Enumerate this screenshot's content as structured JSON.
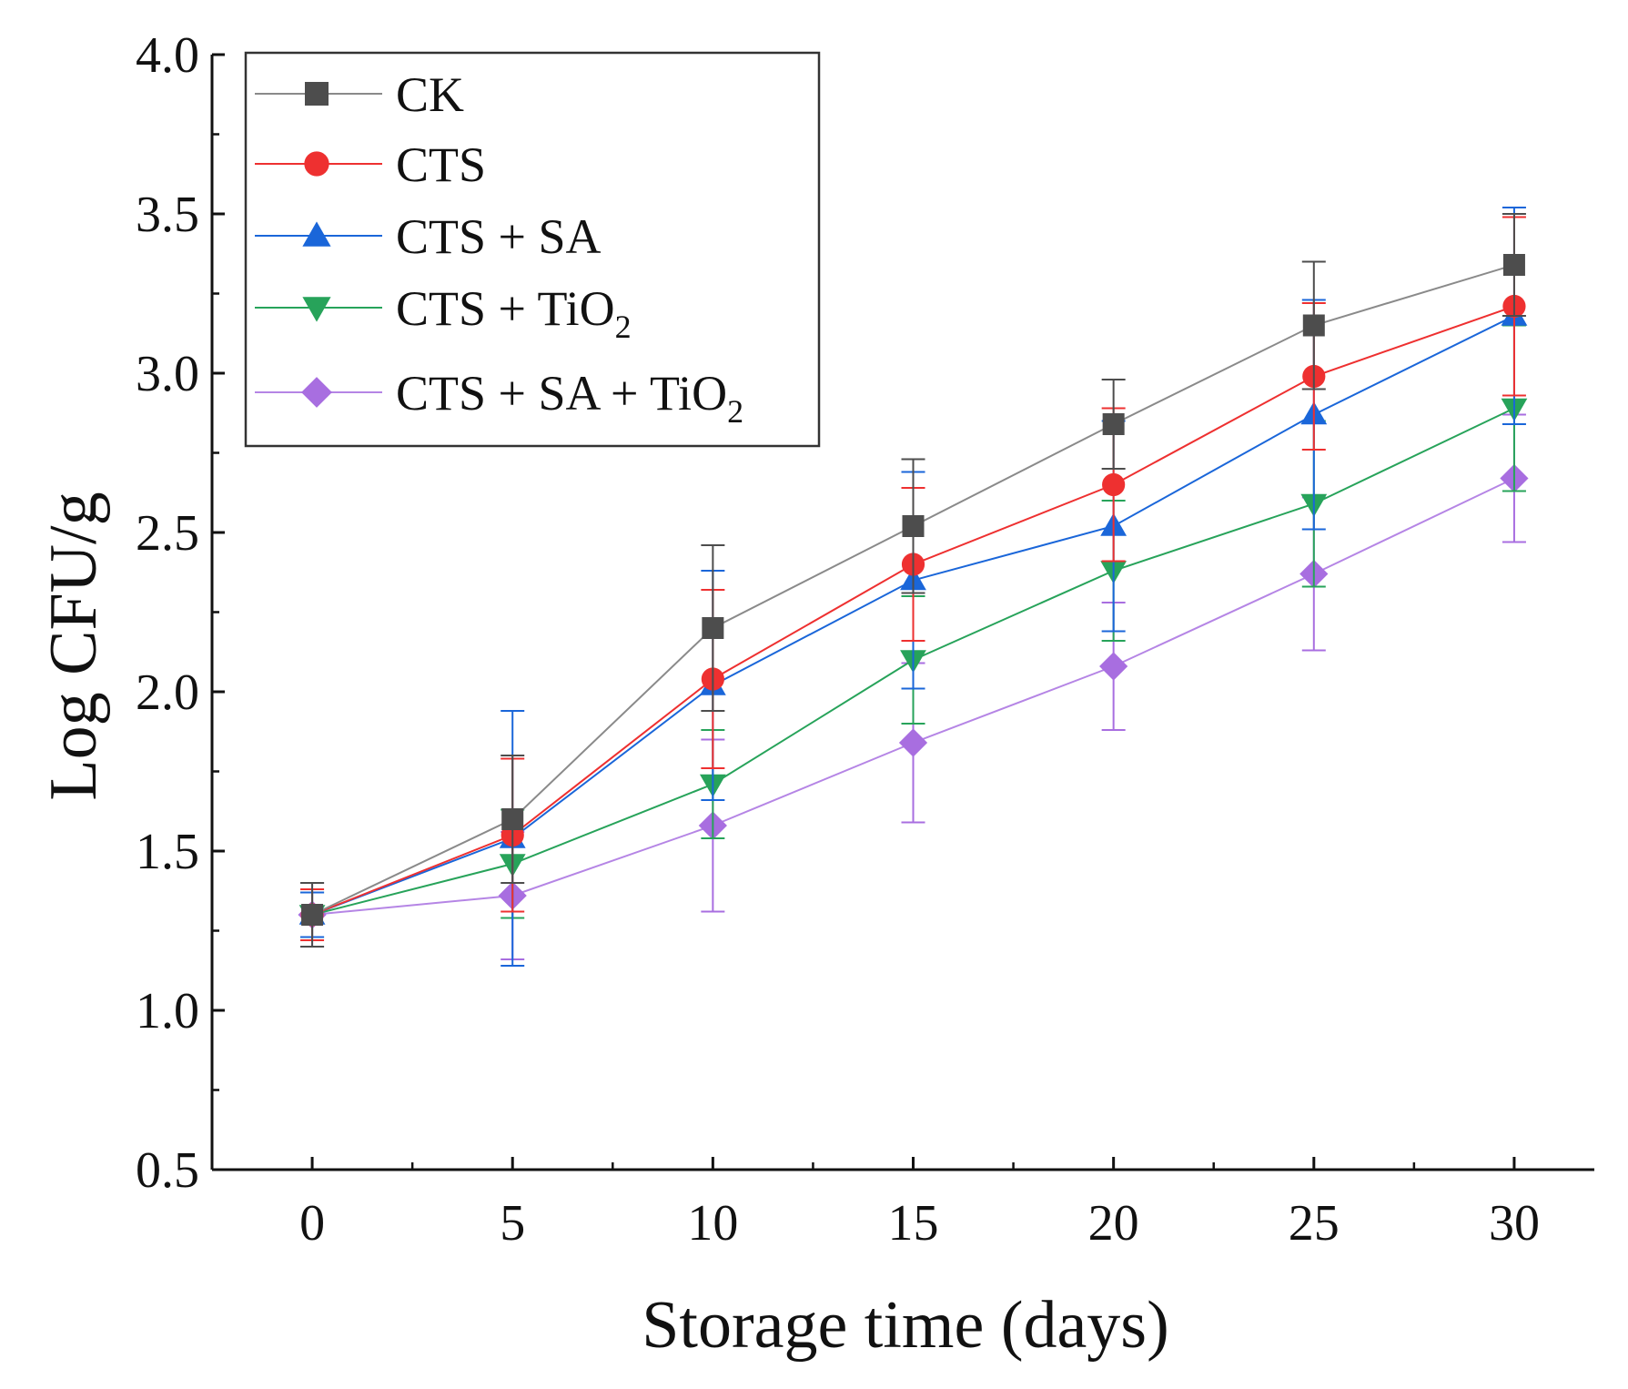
{
  "chart_data": {
    "type": "line",
    "xlabel": "Storage time (days)",
    "ylabel": "Log CFU/g",
    "xlim": [
      -2.5,
      32
    ],
    "ylim": [
      0.5,
      4.0
    ],
    "xticks": [
      0,
      5,
      10,
      15,
      20,
      25,
      30
    ],
    "xtick_labels": [
      "0",
      "5",
      "10",
      "15",
      "20",
      "25",
      "30"
    ],
    "yticks": [
      0.5,
      1.0,
      1.5,
      2.0,
      2.5,
      3.0,
      3.5,
      4.0
    ],
    "ytick_labels": [
      "0.5",
      "1.0",
      "1.5",
      "2.0",
      "2.5",
      "3.0",
      "3.5",
      "4.0"
    ],
    "grid": false,
    "legend_position": "top-left",
    "x": [
      0,
      5,
      10,
      15,
      20,
      25,
      30
    ],
    "series": [
      {
        "id": "ck",
        "name": "CK",
        "name_main": "CK",
        "name_sub": "",
        "marker": "square",
        "color": "#4d4d4d",
        "line_color": "#8a8a8a",
        "values": [
          1.3,
          1.6,
          2.2,
          2.52,
          2.84,
          3.15,
          3.34
        ],
        "errors": [
          0.1,
          0.2,
          0.26,
          0.21,
          0.14,
          0.2,
          0.16
        ]
      },
      {
        "id": "cts",
        "name": "CTS",
        "name_main": "CTS",
        "name_sub": "",
        "marker": "circle",
        "color": "#ee3030",
        "line_color": "#ee3030",
        "values": [
          1.3,
          1.55,
          2.04,
          2.4,
          2.65,
          2.99,
          3.21
        ],
        "errors": [
          0.08,
          0.24,
          0.28,
          0.24,
          0.24,
          0.23,
          0.28
        ]
      },
      {
        "id": "cts-sa",
        "name": "CTS + SA",
        "name_main": "CTS + SA",
        "name_sub": "",
        "marker": "triangle-up",
        "color": "#1a66d9",
        "line_color": "#1a66d9",
        "values": [
          1.3,
          1.54,
          2.02,
          2.35,
          2.52,
          2.87,
          3.18
        ],
        "errors": [
          0.07,
          0.4,
          0.36,
          0.34,
          0.33,
          0.36,
          0.34
        ]
      },
      {
        "id": "cts-tio2",
        "name": "CTS + TiO2",
        "name_main": "CTS + TiO",
        "name_sub": "2",
        "marker": "triangle-down",
        "color": "#27a35a",
        "line_color": "#27a35a",
        "values": [
          1.3,
          1.46,
          1.71,
          2.1,
          2.38,
          2.59,
          2.89
        ],
        "errors": [
          0.07,
          0.17,
          0.17,
          0.2,
          0.22,
          0.26,
          0.26
        ]
      },
      {
        "id": "cts-sa-tio2",
        "name": "CTS + SA + TiO2",
        "name_main": "CTS + SA + TiO",
        "name_sub": "2",
        "marker": "diamond",
        "color": "#a86ee0",
        "line_color": "#b585e5",
        "values": [
          1.3,
          1.36,
          1.58,
          1.84,
          2.08,
          2.37,
          2.67
        ],
        "errors": [
          0.1,
          0.2,
          0.27,
          0.25,
          0.2,
          0.24,
          0.2
        ]
      }
    ]
  }
}
